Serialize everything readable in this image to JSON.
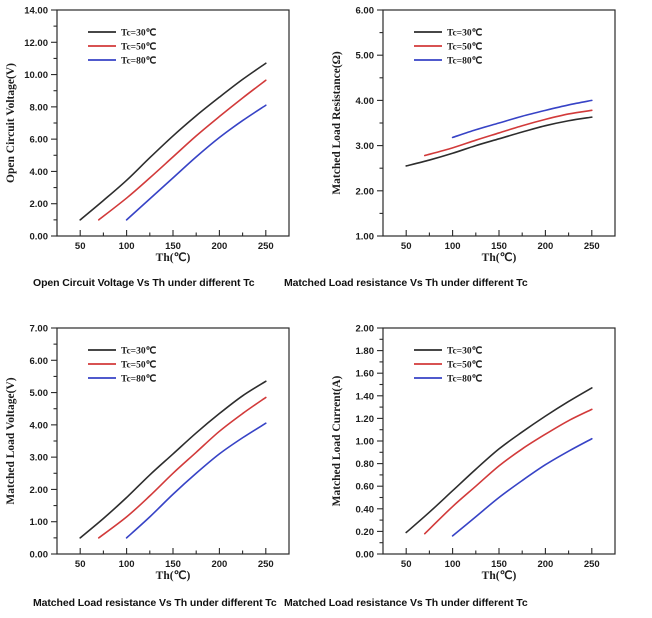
{
  "page": {
    "background_color": "#ffffff",
    "frame_color": "#2a2a2a",
    "text_color": "#1d1d1d"
  },
  "chart_data": [
    {
      "id": "open-circuit-voltage",
      "type": "line",
      "caption": "Open Circuit Voltage Vs Th under different Tc",
      "xlabel": "Th(℃)",
      "ylabel": "Open Circuit Voltage(V)",
      "xlim": [
        25,
        275
      ],
      "xticks": [
        50,
        100,
        150,
        200,
        250
      ],
      "x_minor_step": 25,
      "ylim": [
        0,
        14
      ],
      "ytick_step": 2,
      "y_minor_step": 1,
      "ytick_decimals": 2,
      "grid": false,
      "legend_position": "top-left-inside",
      "series": [
        {
          "name": "Tc=30℃",
          "color": "#2d2d2d",
          "x": [
            50,
            75,
            100,
            125,
            150,
            175,
            200,
            225,
            250
          ],
          "y": [
            1.0,
            2.2,
            3.45,
            4.85,
            6.2,
            7.45,
            8.6,
            9.7,
            10.7
          ]
        },
        {
          "name": "Tc=50℃",
          "color": "#d23a3a",
          "x": [
            70,
            100,
            125,
            150,
            175,
            200,
            225,
            250
          ],
          "y": [
            1.0,
            2.35,
            3.6,
            4.9,
            6.2,
            7.4,
            8.55,
            9.65
          ]
        },
        {
          "name": "Tc=80℃",
          "color": "#3743c6",
          "x": [
            100,
            125,
            150,
            175,
            200,
            225,
            250
          ],
          "y": [
            1.0,
            2.3,
            3.6,
            4.9,
            6.1,
            7.15,
            8.1
          ]
        }
      ]
    },
    {
      "id": "matched-load-resistance",
      "type": "line",
      "caption": "Matched Load resistance Vs Th under different Tc",
      "xlabel": "Th(℃)",
      "ylabel": "Matched Load Resistance(Ω)",
      "xlim": [
        25,
        275
      ],
      "xticks": [
        50,
        100,
        150,
        200,
        250
      ],
      "x_minor_step": 25,
      "ylim": [
        1,
        6
      ],
      "ytick_step": 1,
      "y_minor_step": 0.5,
      "ytick_decimals": 2,
      "grid": false,
      "legend_position": "top-left-inside",
      "series": [
        {
          "name": "Tc=30℃",
          "color": "#2d2d2d",
          "x": [
            50,
            75,
            100,
            125,
            150,
            175,
            200,
            225,
            250
          ],
          "y": [
            2.55,
            2.68,
            2.83,
            3.0,
            3.15,
            3.3,
            3.44,
            3.55,
            3.63
          ]
        },
        {
          "name": "Tc=50℃",
          "color": "#d23a3a",
          "x": [
            70,
            100,
            125,
            150,
            175,
            200,
            225,
            250
          ],
          "y": [
            2.78,
            2.95,
            3.12,
            3.28,
            3.44,
            3.58,
            3.7,
            3.78
          ]
        },
        {
          "name": "Tc=80℃",
          "color": "#3743c6",
          "x": [
            100,
            125,
            150,
            175,
            200,
            225,
            250
          ],
          "y": [
            3.18,
            3.35,
            3.5,
            3.65,
            3.78,
            3.9,
            4.0
          ]
        }
      ]
    },
    {
      "id": "matched-load-voltage",
      "type": "line",
      "caption": "Matched Load resistance Vs Th under different Tc",
      "xlabel": "Th(℃)",
      "ylabel": "Matched Load Voltage(V)",
      "xlim": [
        25,
        275
      ],
      "xticks": [
        50,
        100,
        150,
        200,
        250
      ],
      "x_minor_step": 25,
      "ylim": [
        0,
        7
      ],
      "ytick_step": 1,
      "y_minor_step": 0.5,
      "ytick_decimals": 2,
      "grid": false,
      "legend_position": "top-left-inside",
      "series": [
        {
          "name": "Tc=30℃",
          "color": "#2d2d2d",
          "x": [
            50,
            75,
            100,
            125,
            150,
            175,
            200,
            225,
            250
          ],
          "y": [
            0.5,
            1.1,
            1.75,
            2.45,
            3.1,
            3.75,
            4.35,
            4.9,
            5.35
          ]
        },
        {
          "name": "Tc=50℃",
          "color": "#d23a3a",
          "x": [
            70,
            100,
            125,
            150,
            175,
            200,
            225,
            250
          ],
          "y": [
            0.5,
            1.15,
            1.8,
            2.5,
            3.15,
            3.8,
            4.35,
            4.85
          ]
        },
        {
          "name": "Tc=80℃",
          "color": "#3743c6",
          "x": [
            100,
            125,
            150,
            175,
            200,
            225,
            250
          ],
          "y": [
            0.5,
            1.15,
            1.85,
            2.5,
            3.1,
            3.6,
            4.05
          ]
        }
      ]
    },
    {
      "id": "matched-load-current",
      "type": "line",
      "caption": "Matched Load resistance Vs Th under different Tc",
      "xlabel": "Th(℃)",
      "ylabel": "Matched Load Current(A)",
      "xlim": [
        25,
        275
      ],
      "xticks": [
        50,
        100,
        150,
        200,
        250
      ],
      "x_minor_step": 25,
      "ylim": [
        0,
        2
      ],
      "ytick_step": 0.2,
      "y_minor_step": 0.1,
      "ytick_decimals": 2,
      "grid": false,
      "legend_position": "top-left-inside",
      "series": [
        {
          "name": "Tc=30℃",
          "color": "#2d2d2d",
          "x": [
            50,
            75,
            100,
            125,
            150,
            175,
            200,
            225,
            250
          ],
          "y": [
            0.19,
            0.37,
            0.56,
            0.75,
            0.93,
            1.08,
            1.22,
            1.35,
            1.47
          ]
        },
        {
          "name": "Tc=50℃",
          "color": "#d23a3a",
          "x": [
            70,
            100,
            125,
            150,
            175,
            200,
            225,
            250
          ],
          "y": [
            0.18,
            0.42,
            0.6,
            0.78,
            0.93,
            1.06,
            1.18,
            1.28
          ]
        },
        {
          "name": "Tc=80℃",
          "color": "#3743c6",
          "x": [
            100,
            125,
            150,
            175,
            200,
            225,
            250
          ],
          "y": [
            0.16,
            0.33,
            0.5,
            0.65,
            0.79,
            0.91,
            1.02
          ]
        }
      ]
    }
  ]
}
